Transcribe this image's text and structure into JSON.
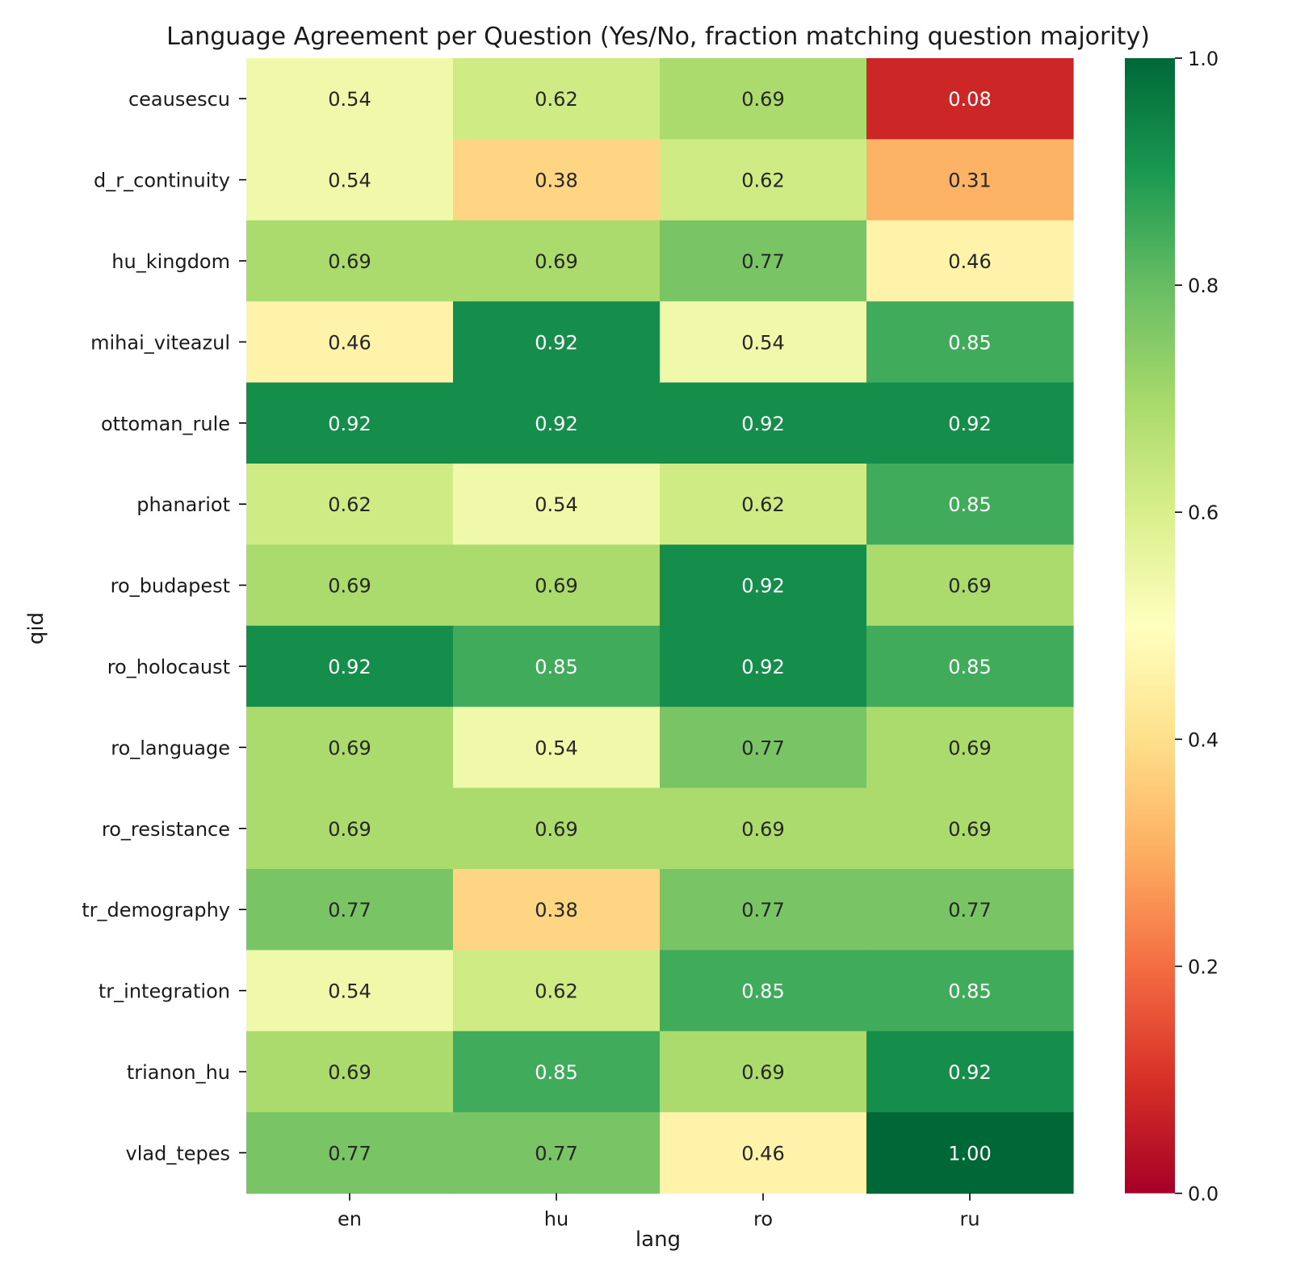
{
  "chart_data": {
    "type": "heatmap",
    "title": "Language Agreement per Question (Yes/No, fraction matching question majority)",
    "xlabel": "lang",
    "ylabel": "qid",
    "x": [
      "en",
      "hu",
      "ro",
      "ru"
    ],
    "y": [
      "ceausescu",
      "d_r_continuity",
      "hu_kingdom",
      "mihai_viteazul",
      "ottoman_rule",
      "phanariot",
      "ro_budapest",
      "ro_holocaust",
      "ro_language",
      "ro_resistance",
      "tr_demography",
      "tr_integration",
      "trianon_hu",
      "vlad_tepes"
    ],
    "values": [
      [
        0.54,
        0.62,
        0.69,
        0.08
      ],
      [
        0.54,
        0.38,
        0.62,
        0.31
      ],
      [
        0.69,
        0.69,
        0.77,
        0.46
      ],
      [
        0.46,
        0.92,
        0.54,
        0.85
      ],
      [
        0.92,
        0.92,
        0.92,
        0.92
      ],
      [
        0.62,
        0.54,
        0.62,
        0.85
      ],
      [
        0.69,
        0.69,
        0.92,
        0.69
      ],
      [
        0.92,
        0.85,
        0.92,
        0.85
      ],
      [
        0.69,
        0.54,
        0.77,
        0.69
      ],
      [
        0.69,
        0.69,
        0.69,
        0.69
      ],
      [
        0.77,
        0.38,
        0.77,
        0.77
      ],
      [
        0.54,
        0.62,
        0.85,
        0.85
      ],
      [
        0.69,
        0.85,
        0.69,
        0.92
      ],
      [
        0.77,
        0.77,
        0.46,
        1.0
      ]
    ],
    "value_labels": [
      [
        "0.54",
        "0.62",
        "0.69",
        "0.08"
      ],
      [
        "0.54",
        "0.38",
        "0.62",
        "0.31"
      ],
      [
        "0.69",
        "0.69",
        "0.77",
        "0.46"
      ],
      [
        "0.46",
        "0.92",
        "0.54",
        "0.85"
      ],
      [
        "0.92",
        "0.92",
        "0.92",
        "0.92"
      ],
      [
        "0.62",
        "0.54",
        "0.62",
        "0.85"
      ],
      [
        "0.69",
        "0.69",
        "0.92",
        "0.69"
      ],
      [
        "0.92",
        "0.85",
        "0.92",
        "0.85"
      ],
      [
        "0.69",
        "0.54",
        "0.77",
        "0.69"
      ],
      [
        "0.69",
        "0.69",
        "0.69",
        "0.69"
      ],
      [
        "0.77",
        "0.38",
        "0.77",
        "0.77"
      ],
      [
        "0.54",
        "0.62",
        "0.85",
        "0.85"
      ],
      [
        "0.69",
        "0.85",
        "0.69",
        "0.92"
      ],
      [
        "0.77",
        "0.77",
        "0.46",
        "1.00"
      ]
    ],
    "colormap": "RdYlGn",
    "colorbar": {
      "range": [
        0.0,
        1.0
      ],
      "ticks": [
        0.0,
        0.2,
        0.4,
        0.6,
        0.8,
        1.0
      ],
      "tick_labels": [
        "0.0",
        "0.2",
        "0.4",
        "0.6",
        "0.8",
        "1.0"
      ]
    },
    "grid": false,
    "legend": "colorbar-right"
  }
}
